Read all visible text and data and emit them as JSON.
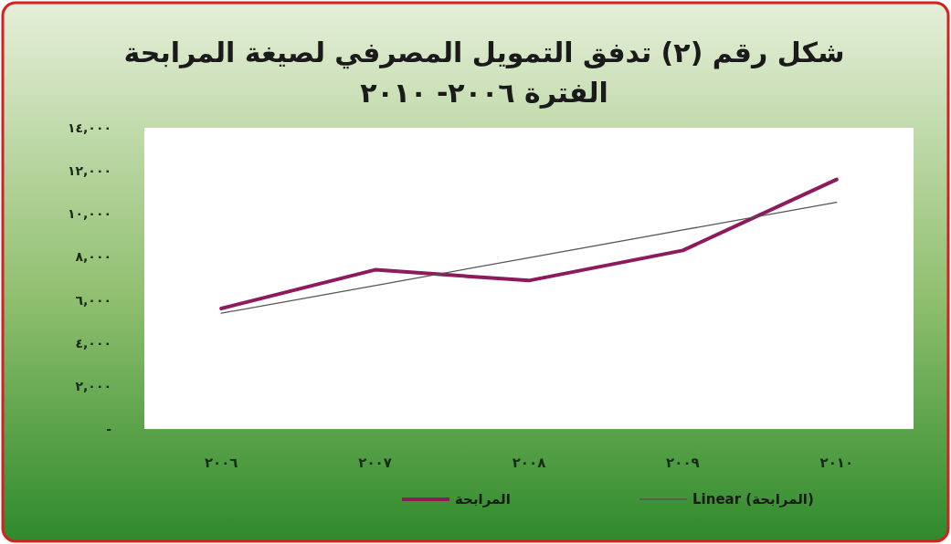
{
  "chart_data": {
    "type": "line",
    "title": "شكل رقم (٢) تدفق التمويل المصرفي لصيغة المرابحة",
    "subtitle": "الفترة ٢٠٠٦- ٢٠١٠",
    "categories": [
      "٢٠٠٦",
      "٢٠٠٧",
      "٢٠٠٨",
      "٢٠٠٩",
      "٢٠١٠"
    ],
    "series": [
      {
        "name": "المرابحة",
        "color": "#8e1a5e",
        "values": [
          5600,
          7400,
          6900,
          8300,
          11600
        ]
      },
      {
        "name": "Linear (المرابحة)",
        "color": "#555555",
        "values": [
          5380,
          6670,
          7960,
          9250,
          10540
        ]
      }
    ],
    "ylim": [
      0,
      14000
    ],
    "yticks": [
      {
        "value": 0,
        "label": "-"
      },
      {
        "value": 2000,
        "label": "٢,٠٠٠"
      },
      {
        "value": 4000,
        "label": "٤,٠٠٠"
      },
      {
        "value": 6000,
        "label": "٦,٠٠٠"
      },
      {
        "value": 8000,
        "label": "٨,٠٠٠"
      },
      {
        "value": 10000,
        "label": "١٠,٠٠٠"
      },
      {
        "value": 12000,
        "label": "١٢,٠٠٠"
      },
      {
        "value": 14000,
        "label": "١٤,٠٠٠"
      }
    ],
    "legend": "bottom",
    "grid": false,
    "marker": "none"
  }
}
